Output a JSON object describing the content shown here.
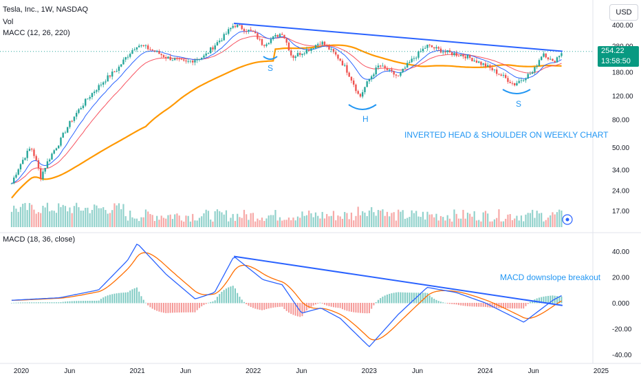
{
  "header": {
    "symbol_line": "Tesla, Inc., 1W, NASDAQ",
    "vol_label": "Vol",
    "macc_label": "MACC (12, 26, 220)",
    "currency": "USD"
  },
  "price_badge": {
    "price": "254.22",
    "countdown": "13:58:50"
  },
  "macd_pane": {
    "label": "MACD (18, 36, close)"
  },
  "annotations": {
    "left_shoulder": "S",
    "head": "H",
    "right_shoulder": "S",
    "pattern_text": "INVERTED HEAD & SHOULDER ON WEEKLY CHART",
    "macd_text": "MACD downslope breakout"
  },
  "colors": {
    "up": "#26a69a",
    "down": "#ef5350",
    "ema_fast": "#2962ff",
    "ema_slow": "#f7525f",
    "ema_long": "#ff9800",
    "trendline": "#2962ff",
    "macd": "#2962ff",
    "signal": "#ff6d00",
    "annotation": "#2196f3"
  },
  "chart_data": [
    {
      "type": "candlestick",
      "scale": "log",
      "y_ticks": [
        17,
        24,
        34,
        50,
        80,
        120,
        180,
        280,
        400
      ],
      "y_tick_labels": [
        "17.00",
        "24.00",
        "34.00",
        "50.00",
        "80.00",
        "120.00",
        "180.00",
        "280.00",
        "400.00"
      ],
      "x_tick_labels": [
        "2020",
        "Jun",
        "2021",
        "Jun",
        "2022",
        "Jun",
        "2023",
        "Jun",
        "2024",
        "Jun",
        "2025"
      ],
      "x_tick_dates": [
        "2020-01",
        "2020-06",
        "2021-01",
        "2021-06",
        "2022-01",
        "2022-06",
        "2023-01",
        "2023-06",
        "2024-01",
        "2024-06",
        "2025-01"
      ],
      "current_price": 254.22,
      "close_anchors": [
        {
          "date": "2019-12",
          "close": 27
        },
        {
          "date": "2020-02",
          "close": 50
        },
        {
          "date": "2020-03",
          "close": 30
        },
        {
          "date": "2020-05",
          "close": 55
        },
        {
          "date": "2020-07",
          "close": 95
        },
        {
          "date": "2020-09",
          "close": 140
        },
        {
          "date": "2020-11",
          "close": 190
        },
        {
          "date": "2021-01",
          "close": 285
        },
        {
          "date": "2021-02",
          "close": 270
        },
        {
          "date": "2021-04",
          "close": 230
        },
        {
          "date": "2021-06",
          "close": 210
        },
        {
          "date": "2021-08",
          "close": 235
        },
        {
          "date": "2021-10",
          "close": 330
        },
        {
          "date": "2021-11",
          "close": 400
        },
        {
          "date": "2022-01",
          "close": 350
        },
        {
          "date": "2022-02",
          "close": 285
        },
        {
          "date": "2022-04",
          "close": 350
        },
        {
          "date": "2022-05",
          "close": 230
        },
        {
          "date": "2022-07",
          "close": 270
        },
        {
          "date": "2022-08",
          "close": 300
        },
        {
          "date": "2022-10",
          "close": 220
        },
        {
          "date": "2022-12",
          "close": 115
        },
        {
          "date": "2023-02",
          "close": 200
        },
        {
          "date": "2023-04",
          "close": 165
        },
        {
          "date": "2023-07",
          "close": 280
        },
        {
          "date": "2023-09",
          "close": 250
        },
        {
          "date": "2023-11",
          "close": 235
        },
        {
          "date": "2024-01",
          "close": 200
        },
        {
          "date": "2024-04",
          "close": 145
        },
        {
          "date": "2024-06",
          "close": 180
        },
        {
          "date": "2024-07",
          "close": 250
        },
        {
          "date": "2024-08",
          "close": 210
        },
        {
          "date": "2024-09",
          "close": 254.22
        }
      ],
      "trendline": {
        "from": {
          "date": "2021-11",
          "price": 410
        },
        "to": {
          "date": "2024-09",
          "price": 255
        }
      },
      "series": [
        {
          "name": "Vol"
        },
        {
          "name": "MACC (12, 26, 220)"
        }
      ]
    },
    {
      "type": "macd",
      "y_ticks": [
        -40,
        -20,
        0,
        20,
        40
      ],
      "y_tick_labels": [
        "-40.00",
        "-20.00",
        "0.000",
        "20.00",
        "40.00"
      ],
      "macd_anchors": [
        {
          "date": "2019-12",
          "value": 2
        },
        {
          "date": "2020-05",
          "value": 4
        },
        {
          "date": "2020-09",
          "value": 10
        },
        {
          "date": "2020-12",
          "value": 33
        },
        {
          "date": "2021-01",
          "value": 46
        },
        {
          "date": "2021-04",
          "value": 22
        },
        {
          "date": "2021-07",
          "value": 3
        },
        {
          "date": "2021-09",
          "value": 8
        },
        {
          "date": "2021-11",
          "value": 36
        },
        {
          "date": "2022-02",
          "value": 18
        },
        {
          "date": "2022-04",
          "value": 14
        },
        {
          "date": "2022-06",
          "value": -8
        },
        {
          "date": "2022-08",
          "value": -4
        },
        {
          "date": "2022-10",
          "value": -12
        },
        {
          "date": "2023-01",
          "value": -34
        },
        {
          "date": "2023-04",
          "value": -9
        },
        {
          "date": "2023-07",
          "value": 12
        },
        {
          "date": "2023-10",
          "value": 8
        },
        {
          "date": "2024-01",
          "value": 0
        },
        {
          "date": "2024-05",
          "value": -15
        },
        {
          "date": "2024-08",
          "value": 2
        },
        {
          "date": "2024-09",
          "value": 6
        }
      ],
      "trendline": {
        "from": {
          "date": "2021-11",
          "value": 36
        },
        "to": {
          "date": "2024-09",
          "value": -2
        }
      }
    }
  ]
}
